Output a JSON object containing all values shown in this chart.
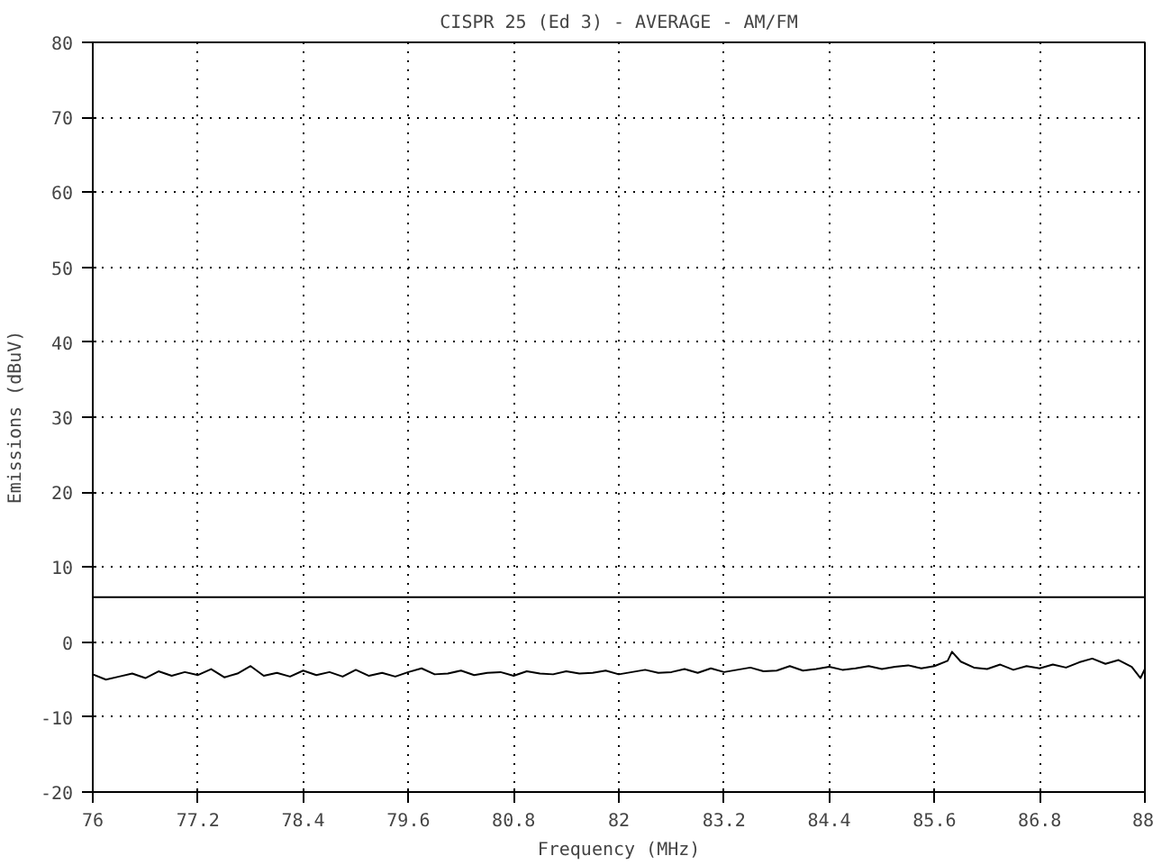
{
  "chart_data": {
    "type": "line",
    "title": "CISPR 25 (Ed 3) - AVERAGE - AM/FM",
    "xlabel": "Frequency (MHz)",
    "ylabel": "Emissions (dBuV)",
    "xlim": [
      76,
      88
    ],
    "xticks": [
      76,
      77.2,
      78.4,
      79.6,
      80.8,
      82,
      83.2,
      84.4,
      85.6,
      86.8,
      88
    ],
    "ylim": [
      -20,
      80
    ],
    "yticks": [
      -20,
      -10,
      0,
      10,
      20,
      30,
      40,
      50,
      60,
      70,
      80
    ],
    "grid": true,
    "ref_lines": [
      {
        "axis": "y",
        "value": 6,
        "color": "#000000"
      }
    ],
    "series": [
      {
        "color": "#000000",
        "x": [
          76,
          76.15,
          76.3,
          76.45,
          76.6,
          76.75,
          76.9,
          77.05,
          77.2,
          77.35,
          77.5,
          77.65,
          77.8,
          77.95,
          78.1,
          78.25,
          78.4,
          78.55,
          78.7,
          78.85,
          79,
          79.15,
          79.3,
          79.45,
          79.6,
          79.75,
          79.9,
          80.05,
          80.2,
          80.35,
          80.5,
          80.65,
          80.8,
          80.95,
          81.1,
          81.25,
          81.4,
          81.55,
          81.7,
          81.85,
          82,
          82.15,
          82.3,
          82.45,
          82.6,
          82.75,
          82.9,
          83.05,
          83.2,
          83.35,
          83.5,
          83.65,
          83.8,
          83.95,
          84.1,
          84.25,
          84.4,
          84.55,
          84.7,
          84.85,
          85,
          85.15,
          85.3,
          85.45,
          85.6,
          85.75,
          85.8,
          85.9,
          86.05,
          86.2,
          86.35,
          86.5,
          86.65,
          86.8,
          86.95,
          87.1,
          87.25,
          87.4,
          87.55,
          87.7,
          87.85,
          87.95,
          88
        ],
        "values": [
          -4.3,
          -5.0,
          -4.6,
          -4.2,
          -4.8,
          -3.9,
          -4.5,
          -4.0,
          -4.4,
          -3.6,
          -4.7,
          -4.2,
          -3.2,
          -4.5,
          -4.1,
          -4.6,
          -3.8,
          -4.4,
          -4.0,
          -4.6,
          -3.7,
          -4.5,
          -4.1,
          -4.6,
          -4.0,
          -3.5,
          -4.3,
          -4.2,
          -3.8,
          -4.4,
          -4.1,
          -4.0,
          -4.5,
          -3.9,
          -4.2,
          -4.3,
          -3.9,
          -4.2,
          -4.1,
          -3.8,
          -4.3,
          -4.0,
          -3.7,
          -4.1,
          -4.0,
          -3.6,
          -4.1,
          -3.5,
          -4.0,
          -3.7,
          -3.4,
          -3.9,
          -3.8,
          -3.2,
          -3.8,
          -3.6,
          -3.3,
          -3.7,
          -3.5,
          -3.2,
          -3.6,
          -3.3,
          -3.1,
          -3.5,
          -3.2,
          -2.5,
          -1.3,
          -2.6,
          -3.4,
          -3.6,
          -3.0,
          -3.7,
          -3.2,
          -3.5,
          -3.0,
          -3.4,
          -2.7,
          -2.2,
          -2.9,
          -2.4,
          -3.3,
          -4.8,
          -3.6
        ]
      }
    ]
  }
}
